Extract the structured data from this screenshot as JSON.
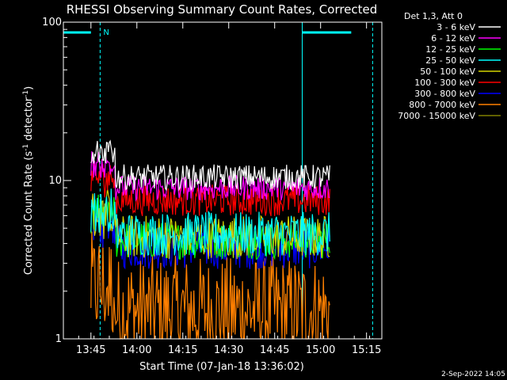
{
  "chart_data": {
    "type": "line",
    "title": "RHESSI Observing Summary Count Rates, Corrected",
    "xlabel": "Start Time (07-Jan-18 13:36:02)",
    "ylabel_main": "Corrected Count Rate (s",
    "ylabel_sup1": "-1",
    "ylabel_mid": " detector",
    "ylabel_sup2": "-1",
    "ylabel_end": ")",
    "y_scale": "log",
    "ylim": [
      1,
      100
    ],
    "xlim": [
      "13:36",
      "15:20"
    ],
    "x_ticks": [
      "13:45",
      "14:00",
      "14:15",
      "14:30",
      "14:45",
      "15:00",
      "15:15"
    ],
    "y_ticks": [
      "1",
      "10",
      "100"
    ],
    "grid": false,
    "legend_position": "top-right",
    "legend_header": "Det 1,3, Att 0",
    "data_start": "13:45",
    "data_end": "15:03",
    "series": [
      {
        "name": "3 - 6 keV",
        "color": "#ffffff",
        "level": 10.5
      },
      {
        "name": "6 - 12 keV",
        "color": "#ff00ff",
        "level": 9.0
      },
      {
        "name": "12 - 25 keV",
        "color": "#00ff00",
        "level": 4.2
      },
      {
        "name": "25 - 50 keV",
        "color": "#00ffff",
        "level": 4.6
      },
      {
        "name": "50 - 100 keV",
        "color": "#d4d400",
        "level": 4.4
      },
      {
        "name": "100 - 300 keV",
        "color": "#ff0000",
        "level": 7.5
      },
      {
        "name": "300 - 800 keV",
        "color": "#0000ff",
        "level": 3.8
      },
      {
        "name": "800 - 7000 keV",
        "color": "#ff8000",
        "level": 1.5
      },
      {
        "name": "7000 - 15000 keV",
        "color": "#808000",
        "level": 1.0
      }
    ],
    "annotations": [
      {
        "label": "N",
        "start": "13:48",
        "end": "15:17",
        "color": "#00ffff"
      }
    ],
    "top_bars": [
      {
        "from": "13:36",
        "to": "13:45"
      },
      {
        "from": "14:54",
        "to": "15:10"
      }
    ],
    "solid_lines": [
      "13:36",
      "14:54"
    ],
    "dashed_lines": [
      "13:48",
      "15:17"
    ]
  },
  "footer": "2-Sep-2022 14:05"
}
